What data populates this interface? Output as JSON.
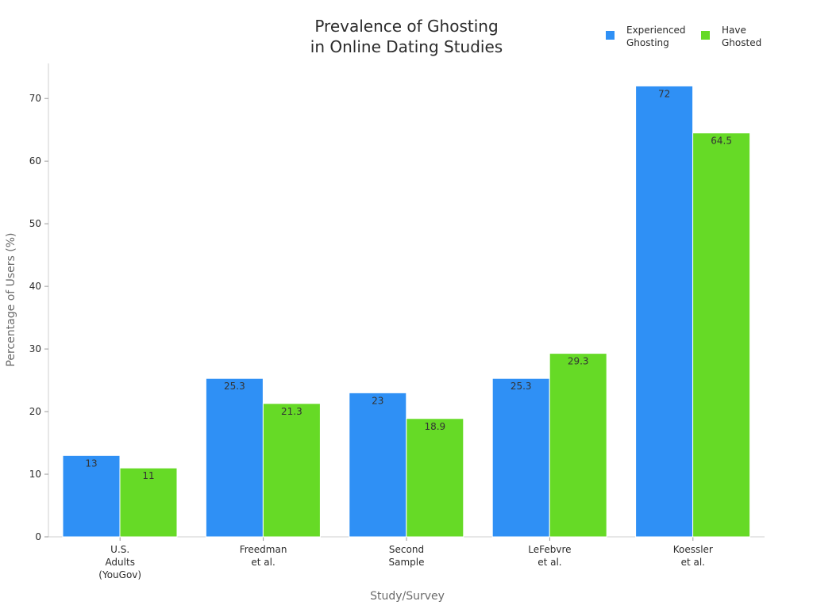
{
  "chart_data": {
    "type": "bar",
    "title_lines": [
      "Prevalence of Ghosting",
      "in Online Dating Studies"
    ],
    "xlabel": "Study/Survey",
    "ylabel": "Percentage of Users (%)",
    "ylim": [
      0,
      75.6
    ],
    "yticks": [
      0,
      10,
      20,
      30,
      40,
      50,
      60,
      70
    ],
    "grid": false,
    "legend_position": "top-right",
    "categories": [
      [
        "U.S.",
        "Adults",
        "(YouGov)"
      ],
      [
        "Freedman",
        "et al."
      ],
      [
        "Second",
        "Sample"
      ],
      [
        "LeFebvre",
        "et al."
      ],
      [
        "Koessler",
        "et al."
      ]
    ],
    "series": [
      {
        "name_lines": [
          "Experienced",
          "Ghosting"
        ],
        "color": "#2f90f5",
        "values": [
          13,
          25.3,
          23,
          25.3,
          72
        ],
        "labels": [
          "13",
          "25.3",
          "23",
          "25.3",
          "72"
        ]
      },
      {
        "name_lines": [
          "Have",
          "Ghosted"
        ],
        "color": "#66da26",
        "values": [
          11,
          21.3,
          18.9,
          29.3,
          64.5
        ],
        "labels": [
          "11",
          "21.3",
          "18.9",
          "29.3",
          "64.5"
        ]
      }
    ]
  }
}
